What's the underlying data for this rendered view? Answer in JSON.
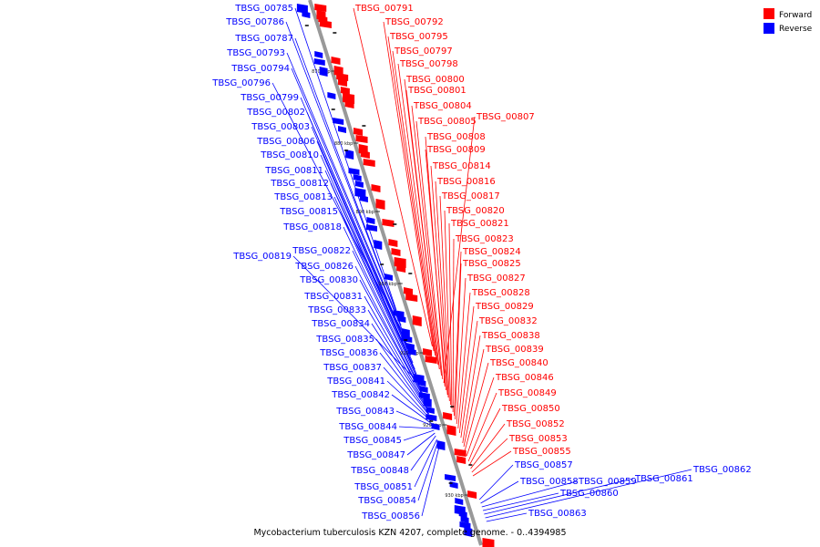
{
  "caption": "Mycobacterium tuberculosis KZN 4207, complete genome. - 0..4394985",
  "legend": {
    "forward_label": "Forward",
    "reverse_label": "Reverse",
    "forward_color": "#ff0000",
    "reverse_color": "#0000ff"
  },
  "colors": {
    "forward": "#ff0000",
    "reverse": "#0000ff",
    "backbone": "#999999"
  },
  "scale_ticks": [
    "870 kbp",
    "880 kbp",
    "890 kbp",
    "900 kbp",
    "910 kbp",
    "920 kbp",
    "930 kbp"
  ],
  "reverse_genes": [
    "TBSG_00785",
    "TBSG_00786",
    "TBSG_00787",
    "TBSG_00793",
    "TBSG_00794",
    "TBSG_00796",
    "TBSG_00799",
    "TBSG_00802",
    "TBSG_00803",
    "TBSG_00806",
    "TBSG_00810",
    "TBSG_00811",
    "TBSG_00812",
    "TBSG_00813",
    "TBSG_00815",
    "TBSG_00818",
    "TBSG_00819",
    "TBSG_00822",
    "TBSG_00826",
    "TBSG_00830",
    "TBSG_00831",
    "TBSG_00833",
    "TBSG_00834",
    "TBSG_00835",
    "TBSG_00836",
    "TBSG_00837",
    "TBSG_00841",
    "TBSG_00842",
    "TBSG_00843",
    "TBSG_00844",
    "TBSG_00845",
    "TBSG_00847",
    "TBSG_00848",
    "TBSG_00851",
    "TBSG_00854",
    "TBSG_00856"
  ],
  "forward_genes": [
    "TBSG_00791",
    "TBSG_00792",
    "TBSG_00795",
    "TBSG_00797",
    "TBSG_00798",
    "TBSG_00800",
    "TBSG_00801",
    "TBSG_00804",
    "TBSG_00805",
    "TBSG_00807",
    "TBSG_00808",
    "TBSG_00809",
    "TBSG_00814",
    "TBSG_00816",
    "TBSG_00817",
    "TBSG_00820",
    "TBSG_00821",
    "TBSG_00823",
    "TBSG_00824",
    "TBSG_00825",
    "TBSG_00827",
    "TBSG_00828",
    "TBSG_00829",
    "TBSG_00832",
    "TBSG_00838",
    "TBSG_00839",
    "TBSG_00840",
    "TBSG_00846",
    "TBSG_00849",
    "TBSG_00850",
    "TBSG_00852",
    "TBSG_00853",
    "TBSG_00855"
  ],
  "right_reverse_genes": [
    "TBSG_00857",
    "TBSG_00858",
    "TBSG_00859",
    "TBSG_00860",
    "TBSG_00861",
    "TBSG_00862",
    "TBSG_00863"
  ]
}
